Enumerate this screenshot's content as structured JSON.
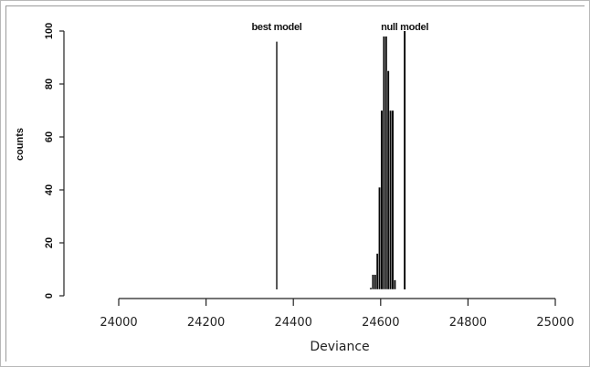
{
  "chart_data": {
    "type": "bar",
    "title": "",
    "xlabel": "Deviance",
    "ylabel": "counts",
    "xlim": [
      24000,
      25000
    ],
    "ylim": [
      0,
      100
    ],
    "x_ticks": [
      "24000",
      "24200",
      "24400",
      "24600",
      "24800",
      "25000"
    ],
    "y_ticks": [
      "0",
      "20",
      "40",
      "60",
      "80",
      "100"
    ],
    "grid": false,
    "histogram": {
      "bin_width": 5,
      "bins": [
        {
          "x0": 24575,
          "x1": 24580,
          "count": 3
        },
        {
          "x0": 24580,
          "x1": 24585,
          "count": 8
        },
        {
          "x0": 24585,
          "x1": 24590,
          "count": 8
        },
        {
          "x0": 24590,
          "x1": 24595,
          "count": 16
        },
        {
          "x0": 24595,
          "x1": 24600,
          "count": 41
        },
        {
          "x0": 24600,
          "x1": 24605,
          "count": 70
        },
        {
          "x0": 24605,
          "x1": 24610,
          "count": 98
        },
        {
          "x0": 24610,
          "x1": 24615,
          "count": 98
        },
        {
          "x0": 24615,
          "x1": 24620,
          "count": 85
        },
        {
          "x0": 24620,
          "x1": 24625,
          "count": 70
        },
        {
          "x0": 24625,
          "x1": 24630,
          "count": 70
        },
        {
          "x0": 24630,
          "x1": 24635,
          "count": 6
        }
      ]
    },
    "reference_lines": [
      {
        "label": "best model",
        "x": 24362,
        "color": "#555555",
        "height": 96
      },
      {
        "label": "null model",
        "x": 24655,
        "color": "#111111",
        "height": 100
      }
    ]
  }
}
